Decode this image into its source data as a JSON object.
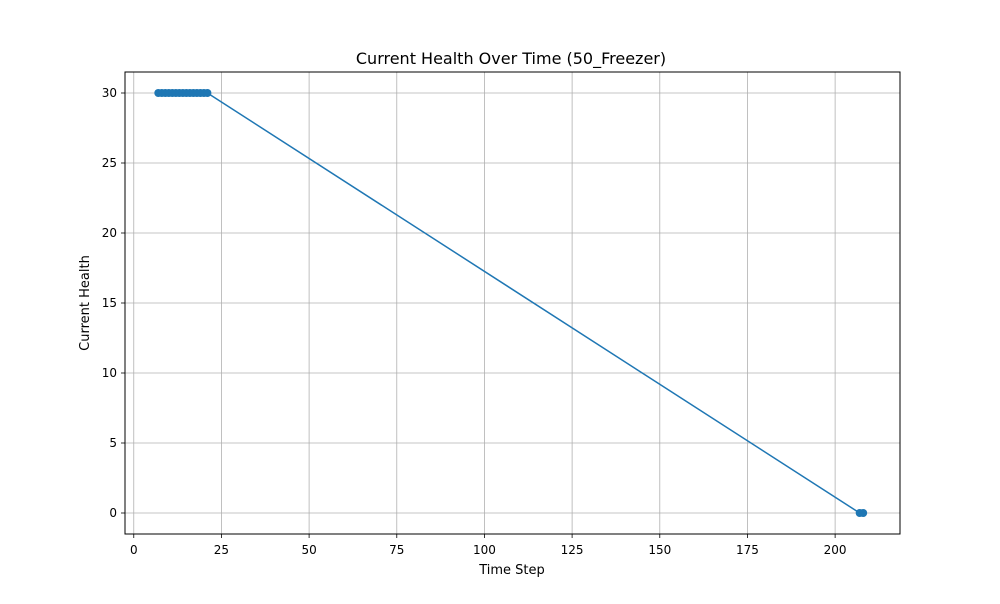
{
  "chart_data": {
    "type": "line",
    "title": "Current Health Over Time (50_Freezer)",
    "xlabel": "Time Step",
    "ylabel": "Current Health",
    "xlim": [
      -2.5,
      218.5
    ],
    "ylim": [
      -1.5,
      31.5
    ],
    "x_ticks": [
      0,
      25,
      50,
      75,
      100,
      125,
      150,
      175,
      200
    ],
    "y_ticks": [
      0,
      5,
      10,
      15,
      20,
      25,
      30
    ],
    "grid": true,
    "series": [
      {
        "color": "#1f77b4",
        "marker": "circle",
        "x": [
          7,
          8,
          9,
          10,
          11,
          12,
          13,
          14,
          15,
          16,
          17,
          18,
          19,
          20,
          21,
          207,
          208
        ],
        "y": [
          30,
          30,
          30,
          30,
          30,
          30,
          30,
          30,
          30,
          30,
          30,
          30,
          30,
          30,
          30,
          0,
          0
        ]
      }
    ]
  }
}
